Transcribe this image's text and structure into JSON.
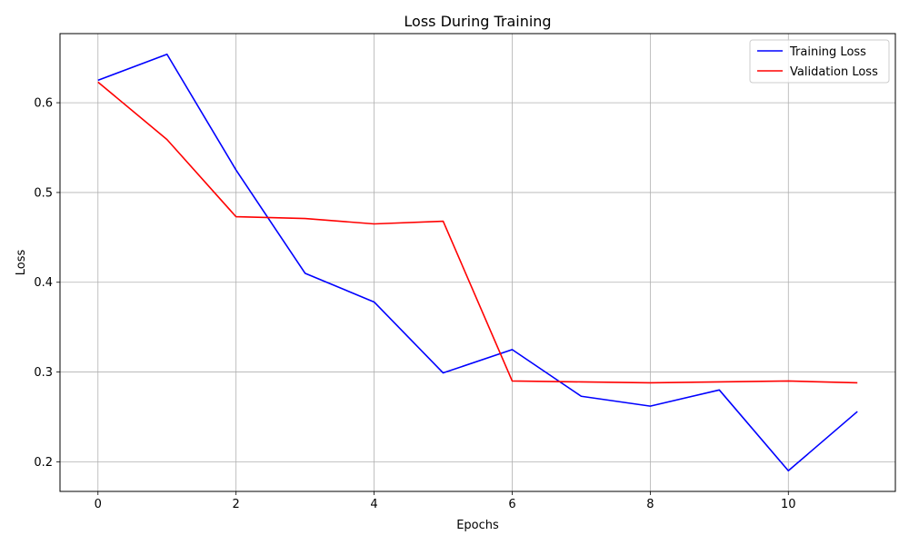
{
  "chart_data": {
    "type": "line",
    "title": "Loss During Training",
    "xlabel": "Epochs",
    "ylabel": "Loss",
    "x": [
      0,
      1,
      2,
      3,
      4,
      5,
      6,
      7,
      8,
      9,
      10,
      11
    ],
    "xlim": [
      -0.55,
      11.55
    ],
    "ylim": [
      0.167,
      0.677
    ],
    "xticks": [
      0,
      2,
      4,
      6,
      8,
      10
    ],
    "yticks": [
      0.2,
      0.3,
      0.4,
      0.5,
      0.6
    ],
    "grid": true,
    "legend_position": "top-right",
    "series": [
      {
        "name": "Training Loss",
        "color": "#0000ff",
        "values": [
          0.625,
          0.654,
          0.525,
          0.41,
          0.378,
          0.299,
          0.325,
          0.273,
          0.262,
          0.28,
          0.19,
          0.256
        ]
      },
      {
        "name": "Validation Loss",
        "color": "#ff0000",
        "values": [
          0.623,
          0.559,
          0.473,
          0.471,
          0.465,
          0.468,
          0.29,
          0.289,
          0.288,
          0.289,
          0.29,
          0.288
        ]
      }
    ]
  }
}
